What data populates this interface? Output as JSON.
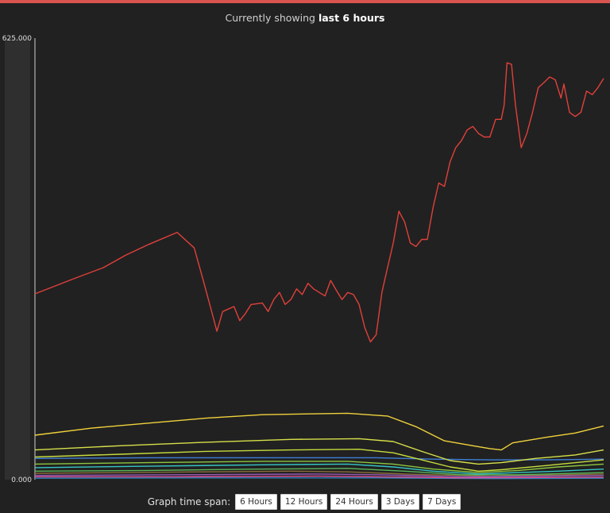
{
  "header": {
    "prefix": "Currently showing ",
    "period": "last 6 hours"
  },
  "footer": {
    "label": "Graph time span:",
    "buttons": [
      "6 Hours",
      "12 Hours",
      "24 Hours",
      "3 Days",
      "7 Days"
    ]
  },
  "colors": {
    "background": "#212121",
    "accent": "#d9534f"
  },
  "chart_data": {
    "type": "line",
    "title": "",
    "xlabel": "",
    "ylabel": "",
    "ylim": [
      0,
      625000
    ],
    "grid": false,
    "legend": "none",
    "y_ticks": [
      "0.000",
      "625.000"
    ],
    "x_range": [
      0,
      100
    ],
    "series": [
      {
        "color": "#e0403a",
        "points": [
          [
            0,
            263000
          ],
          [
            7,
            285000
          ],
          [
            12,
            300000
          ],
          [
            16,
            318000
          ],
          [
            20,
            333000
          ],
          [
            25,
            350000
          ],
          [
            28,
            328000
          ],
          [
            29.5,
            285000
          ],
          [
            31,
            240000
          ],
          [
            32,
            210000
          ],
          [
            33,
            238000
          ],
          [
            35,
            245000
          ],
          [
            36,
            225000
          ],
          [
            37,
            235000
          ],
          [
            38,
            248000
          ],
          [
            40,
            250000
          ],
          [
            41,
            238000
          ],
          [
            42,
            255000
          ],
          [
            43,
            265000
          ],
          [
            44,
            248000
          ],
          [
            45,
            255000
          ],
          [
            46,
            270000
          ],
          [
            47,
            262000
          ],
          [
            48,
            278000
          ],
          [
            49,
            270000
          ],
          [
            51,
            260000
          ],
          [
            52,
            282000
          ],
          [
            53,
            268000
          ],
          [
            54,
            255000
          ],
          [
            55,
            265000
          ],
          [
            56,
            262000
          ],
          [
            57,
            248000
          ],
          [
            58,
            215000
          ],
          [
            59,
            195000
          ],
          [
            60,
            205000
          ],
          [
            61,
            265000
          ],
          [
            62,
            300000
          ],
          [
            63,
            335000
          ],
          [
            64,
            380000
          ],
          [
            65,
            365000
          ],
          [
            66,
            335000
          ],
          [
            67,
            330000
          ],
          [
            68,
            340000
          ],
          [
            69,
            340000
          ],
          [
            70,
            385000
          ],
          [
            71,
            420000
          ],
          [
            72,
            415000
          ],
          [
            73,
            450000
          ],
          [
            74,
            470000
          ],
          [
            75,
            480000
          ],
          [
            76,
            495000
          ],
          [
            77,
            500000
          ],
          [
            78,
            490000
          ],
          [
            79,
            485000
          ],
          [
            80,
            485000
          ],
          [
            81,
            510000
          ],
          [
            82,
            510000
          ],
          [
            82.5,
            530000
          ],
          [
            83,
            590000
          ],
          [
            83.8,
            588000
          ],
          [
            84.5,
            530000
          ],
          [
            85.5,
            470000
          ],
          [
            86.5,
            490000
          ],
          [
            87.5,
            520000
          ],
          [
            88.5,
            555000
          ],
          [
            89.5,
            562000
          ],
          [
            90.5,
            570000
          ],
          [
            91.5,
            566000
          ],
          [
            92.5,
            540000
          ],
          [
            93,
            560000
          ],
          [
            94,
            520000
          ],
          [
            95,
            514000
          ],
          [
            96,
            520000
          ],
          [
            97,
            550000
          ],
          [
            98,
            545000
          ],
          [
            99,
            555000
          ],
          [
            100,
            568000
          ]
        ]
      },
      {
        "color": "#f0d23c",
        "points": [
          [
            0,
            63000
          ],
          [
            10,
            73000
          ],
          [
            20,
            80000
          ],
          [
            30,
            87000
          ],
          [
            40,
            92000
          ],
          [
            55,
            94000
          ],
          [
            62,
            90000
          ],
          [
            67,
            75000
          ],
          [
            72,
            55000
          ],
          [
            77,
            48000
          ],
          [
            80,
            44000
          ],
          [
            82,
            42000
          ],
          [
            84,
            52000
          ],
          [
            90,
            60000
          ],
          [
            95,
            66000
          ],
          [
            100,
            76000
          ]
        ]
      },
      {
        "color": "#d7e04a",
        "points": [
          [
            0,
            42000
          ],
          [
            15,
            48000
          ],
          [
            30,
            53000
          ],
          [
            45,
            57000
          ],
          [
            57,
            58000
          ],
          [
            63,
            54000
          ],
          [
            68,
            40000
          ],
          [
            73,
            27000
          ],
          [
            78,
            22000
          ],
          [
            82,
            24000
          ],
          [
            88,
            30000
          ],
          [
            95,
            35000
          ],
          [
            100,
            42000
          ]
        ]
      },
      {
        "color": "#c6dc3e",
        "points": [
          [
            0,
            32000
          ],
          [
            15,
            36000
          ],
          [
            30,
            40000
          ],
          [
            45,
            42000
          ],
          [
            57,
            43000
          ],
          [
            63,
            38000
          ],
          [
            68,
            28000
          ],
          [
            73,
            18000
          ],
          [
            78,
            12000
          ],
          [
            82,
            14000
          ],
          [
            90,
            20000
          ],
          [
            100,
            28000
          ]
        ]
      },
      {
        "color": "#3f7fd6",
        "points": [
          [
            0,
            30000
          ],
          [
            20,
            31000
          ],
          [
            40,
            31000
          ],
          [
            60,
            31000
          ],
          [
            70,
            29000
          ],
          [
            80,
            28000
          ],
          [
            90,
            28000
          ],
          [
            100,
            29000
          ]
        ]
      },
      {
        "color": "#8cc63f",
        "points": [
          [
            0,
            22000
          ],
          [
            20,
            24000
          ],
          [
            40,
            26000
          ],
          [
            55,
            26000
          ],
          [
            63,
            22000
          ],
          [
            70,
            15000
          ],
          [
            78,
            10000
          ],
          [
            85,
            13000
          ],
          [
            92,
            18000
          ],
          [
            100,
            22000
          ]
        ]
      },
      {
        "color": "#35c6c4",
        "points": [
          [
            0,
            17000
          ],
          [
            20,
            19000
          ],
          [
            40,
            21000
          ],
          [
            55,
            22000
          ],
          [
            63,
            18000
          ],
          [
            70,
            12000
          ],
          [
            78,
            8000
          ],
          [
            85,
            10000
          ],
          [
            92,
            12000
          ],
          [
            100,
            15000
          ]
        ]
      },
      {
        "color": "#5ab55a",
        "points": [
          [
            0,
            12000
          ],
          [
            20,
            13000
          ],
          [
            40,
            15000
          ],
          [
            55,
            16000
          ],
          [
            65,
            12000
          ],
          [
            75,
            7000
          ],
          [
            85,
            7000
          ],
          [
            100,
            10000
          ]
        ]
      },
      {
        "color": "#9b59b6",
        "points": [
          [
            0,
            6000
          ],
          [
            25,
            7000
          ],
          [
            50,
            8000
          ],
          [
            60,
            7000
          ],
          [
            75,
            4000
          ],
          [
            90,
            5000
          ],
          [
            100,
            6000
          ]
        ]
      },
      {
        "color": "#e0559a",
        "points": [
          [
            0,
            4000
          ],
          [
            25,
            4000
          ],
          [
            50,
            5000
          ],
          [
            60,
            4000
          ],
          [
            75,
            2500
          ],
          [
            90,
            3000
          ],
          [
            100,
            3500
          ]
        ]
      },
      {
        "color": "#8a6d3b",
        "points": [
          [
            0,
            9000
          ],
          [
            30,
            11000
          ],
          [
            45,
            12000
          ],
          [
            55,
            11000
          ],
          [
            65,
            8000
          ],
          [
            80,
            5000
          ],
          [
            100,
            8000
          ]
        ]
      },
      {
        "color": "#2980b9",
        "points": [
          [
            0,
            2000
          ],
          [
            30,
            2500
          ],
          [
            60,
            2500
          ],
          [
            80,
            1500
          ],
          [
            100,
            2000
          ]
        ]
      }
    ]
  }
}
